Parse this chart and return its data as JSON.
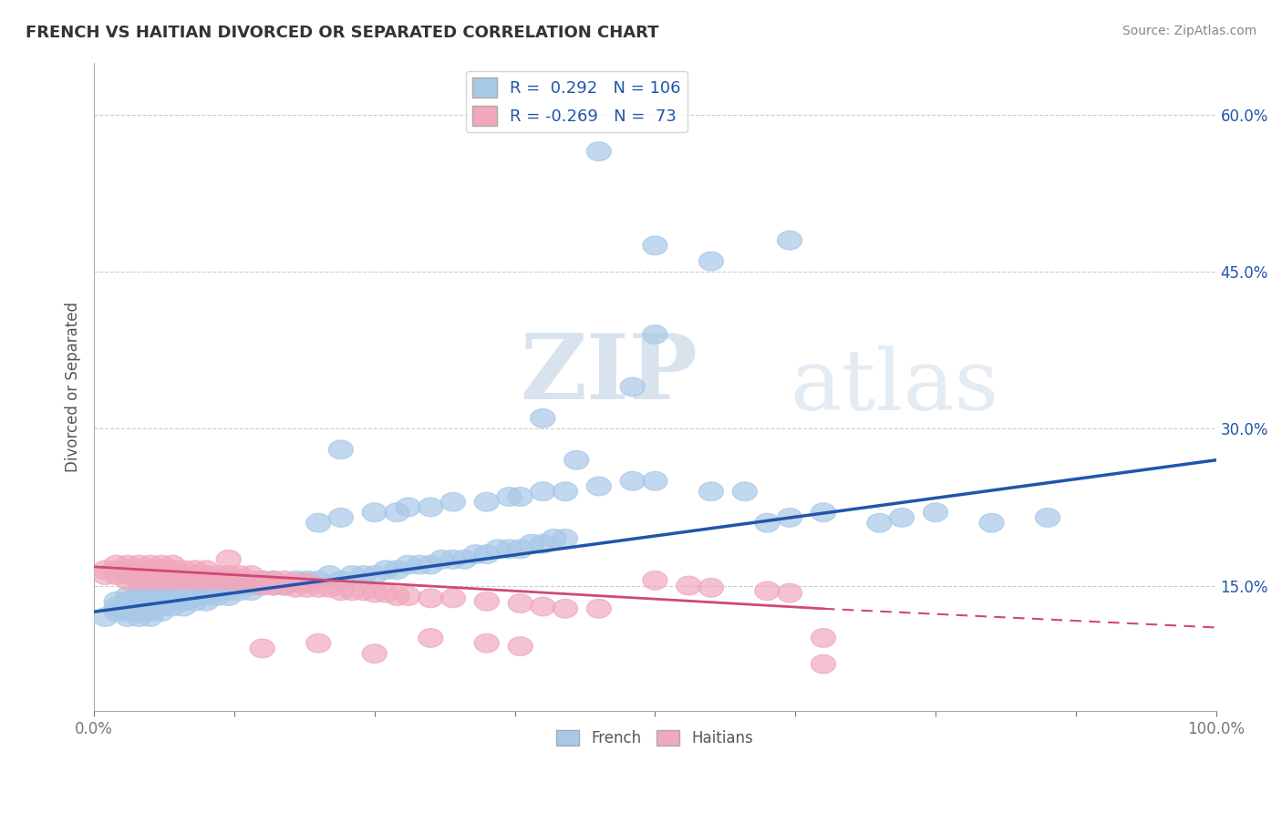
{
  "title": "FRENCH VS HAITIAN DIVORCED OR SEPARATED CORRELATION CHART",
  "source": "Source: ZipAtlas.com",
  "ylabel": "Divorced or Separated",
  "xlim": [
    0.0,
    1.0
  ],
  "ylim": [
    0.03,
    0.65
  ],
  "ytick_positions": [
    0.15,
    0.3,
    0.45,
    0.6
  ],
  "yticklabels": [
    "15.0%",
    "30.0%",
    "45.0%",
    "60.0%"
  ],
  "french_R": "0.292",
  "french_N": "106",
  "haitian_R": "-0.269",
  "haitian_N": "73",
  "french_color": "#a8c8e8",
  "haitian_color": "#f0a8bc",
  "french_line_color": "#2255aa",
  "haitian_line_color": "#d04878",
  "watermark_zip": "ZIP",
  "watermark_atlas": "atlas",
  "legend_french": "French",
  "legend_haitians": "Haitians",
  "french_scatter": [
    [
      0.01,
      0.12
    ],
    [
      0.02,
      0.125
    ],
    [
      0.02,
      0.13
    ],
    [
      0.02,
      0.135
    ],
    [
      0.03,
      0.12
    ],
    [
      0.03,
      0.125
    ],
    [
      0.03,
      0.13
    ],
    [
      0.03,
      0.135
    ],
    [
      0.03,
      0.14
    ],
    [
      0.04,
      0.12
    ],
    [
      0.04,
      0.125
    ],
    [
      0.04,
      0.13
    ],
    [
      0.04,
      0.135
    ],
    [
      0.04,
      0.14
    ],
    [
      0.04,
      0.145
    ],
    [
      0.05,
      0.12
    ],
    [
      0.05,
      0.125
    ],
    [
      0.05,
      0.13
    ],
    [
      0.05,
      0.135
    ],
    [
      0.05,
      0.14
    ],
    [
      0.05,
      0.145
    ],
    [
      0.06,
      0.125
    ],
    [
      0.06,
      0.13
    ],
    [
      0.06,
      0.135
    ],
    [
      0.06,
      0.14
    ],
    [
      0.06,
      0.145
    ],
    [
      0.07,
      0.13
    ],
    [
      0.07,
      0.135
    ],
    [
      0.07,
      0.14
    ],
    [
      0.07,
      0.145
    ],
    [
      0.08,
      0.13
    ],
    [
      0.08,
      0.135
    ],
    [
      0.08,
      0.14
    ],
    [
      0.08,
      0.145
    ],
    [
      0.08,
      0.15
    ],
    [
      0.09,
      0.135
    ],
    [
      0.09,
      0.14
    ],
    [
      0.09,
      0.145
    ],
    [
      0.09,
      0.15
    ],
    [
      0.1,
      0.135
    ],
    [
      0.1,
      0.14
    ],
    [
      0.1,
      0.145
    ],
    [
      0.1,
      0.15
    ],
    [
      0.11,
      0.14
    ],
    [
      0.11,
      0.145
    ],
    [
      0.11,
      0.15
    ],
    [
      0.11,
      0.155
    ],
    [
      0.12,
      0.14
    ],
    [
      0.12,
      0.145
    ],
    [
      0.12,
      0.15
    ],
    [
      0.12,
      0.155
    ],
    [
      0.13,
      0.145
    ],
    [
      0.13,
      0.15
    ],
    [
      0.14,
      0.145
    ],
    [
      0.14,
      0.15
    ],
    [
      0.15,
      0.15
    ],
    [
      0.15,
      0.155
    ],
    [
      0.16,
      0.15
    ],
    [
      0.16,
      0.155
    ],
    [
      0.17,
      0.15
    ],
    [
      0.18,
      0.155
    ],
    [
      0.19,
      0.155
    ],
    [
      0.2,
      0.155
    ],
    [
      0.21,
      0.16
    ],
    [
      0.22,
      0.155
    ],
    [
      0.23,
      0.16
    ],
    [
      0.24,
      0.16
    ],
    [
      0.25,
      0.16
    ],
    [
      0.26,
      0.165
    ],
    [
      0.27,
      0.165
    ],
    [
      0.28,
      0.17
    ],
    [
      0.29,
      0.17
    ],
    [
      0.3,
      0.17
    ],
    [
      0.31,
      0.175
    ],
    [
      0.32,
      0.175
    ],
    [
      0.33,
      0.175
    ],
    [
      0.34,
      0.18
    ],
    [
      0.35,
      0.18
    ],
    [
      0.36,
      0.185
    ],
    [
      0.37,
      0.185
    ],
    [
      0.38,
      0.185
    ],
    [
      0.39,
      0.19
    ],
    [
      0.4,
      0.19
    ],
    [
      0.41,
      0.195
    ],
    [
      0.42,
      0.195
    ],
    [
      0.2,
      0.21
    ],
    [
      0.22,
      0.215
    ],
    [
      0.25,
      0.22
    ],
    [
      0.27,
      0.22
    ],
    [
      0.28,
      0.225
    ],
    [
      0.3,
      0.225
    ],
    [
      0.32,
      0.23
    ],
    [
      0.35,
      0.23
    ],
    [
      0.37,
      0.235
    ],
    [
      0.38,
      0.235
    ],
    [
      0.4,
      0.24
    ],
    [
      0.42,
      0.24
    ],
    [
      0.45,
      0.245
    ],
    [
      0.48,
      0.25
    ],
    [
      0.5,
      0.25
    ],
    [
      0.22,
      0.28
    ],
    [
      0.43,
      0.27
    ],
    [
      0.48,
      0.34
    ],
    [
      0.5,
      0.39
    ],
    [
      0.4,
      0.31
    ],
    [
      0.55,
      0.24
    ],
    [
      0.58,
      0.24
    ],
    [
      0.6,
      0.21
    ],
    [
      0.62,
      0.215
    ],
    [
      0.65,
      0.22
    ],
    [
      0.7,
      0.21
    ],
    [
      0.72,
      0.215
    ],
    [
      0.75,
      0.22
    ],
    [
      0.8,
      0.21
    ],
    [
      0.85,
      0.215
    ],
    [
      0.45,
      0.565
    ],
    [
      0.5,
      0.475
    ],
    [
      0.55,
      0.46
    ],
    [
      0.62,
      0.48
    ]
  ],
  "haitian_scatter": [
    [
      0.01,
      0.16
    ],
    [
      0.01,
      0.165
    ],
    [
      0.02,
      0.16
    ],
    [
      0.02,
      0.165
    ],
    [
      0.02,
      0.17
    ],
    [
      0.03,
      0.155
    ],
    [
      0.03,
      0.16
    ],
    [
      0.03,
      0.165
    ],
    [
      0.03,
      0.17
    ],
    [
      0.04,
      0.155
    ],
    [
      0.04,
      0.16
    ],
    [
      0.04,
      0.165
    ],
    [
      0.04,
      0.17
    ],
    [
      0.05,
      0.155
    ],
    [
      0.05,
      0.16
    ],
    [
      0.05,
      0.165
    ],
    [
      0.05,
      0.17
    ],
    [
      0.06,
      0.155
    ],
    [
      0.06,
      0.16
    ],
    [
      0.06,
      0.165
    ],
    [
      0.06,
      0.17
    ],
    [
      0.07,
      0.155
    ],
    [
      0.07,
      0.16
    ],
    [
      0.07,
      0.165
    ],
    [
      0.07,
      0.17
    ],
    [
      0.08,
      0.155
    ],
    [
      0.08,
      0.16
    ],
    [
      0.08,
      0.165
    ],
    [
      0.09,
      0.155
    ],
    [
      0.09,
      0.16
    ],
    [
      0.09,
      0.165
    ],
    [
      0.1,
      0.155
    ],
    [
      0.1,
      0.16
    ],
    [
      0.1,
      0.165
    ],
    [
      0.11,
      0.155
    ],
    [
      0.11,
      0.16
    ],
    [
      0.12,
      0.155
    ],
    [
      0.12,
      0.16
    ],
    [
      0.12,
      0.175
    ],
    [
      0.13,
      0.155
    ],
    [
      0.13,
      0.16
    ],
    [
      0.14,
      0.155
    ],
    [
      0.14,
      0.16
    ],
    [
      0.15,
      0.15
    ],
    [
      0.15,
      0.155
    ],
    [
      0.16,
      0.15
    ],
    [
      0.16,
      0.155
    ],
    [
      0.17,
      0.15
    ],
    [
      0.17,
      0.155
    ],
    [
      0.18,
      0.148
    ],
    [
      0.18,
      0.153
    ],
    [
      0.19,
      0.148
    ],
    [
      0.19,
      0.153
    ],
    [
      0.2,
      0.148
    ],
    [
      0.21,
      0.148
    ],
    [
      0.22,
      0.145
    ],
    [
      0.23,
      0.145
    ],
    [
      0.24,
      0.145
    ],
    [
      0.25,
      0.143
    ],
    [
      0.26,
      0.143
    ],
    [
      0.27,
      0.14
    ],
    [
      0.28,
      0.14
    ],
    [
      0.3,
      0.138
    ],
    [
      0.32,
      0.138
    ],
    [
      0.35,
      0.135
    ],
    [
      0.38,
      0.133
    ],
    [
      0.4,
      0.13
    ],
    [
      0.42,
      0.128
    ],
    [
      0.45,
      0.128
    ],
    [
      0.15,
      0.09
    ],
    [
      0.2,
      0.095
    ],
    [
      0.25,
      0.085
    ],
    [
      0.3,
      0.1
    ],
    [
      0.35,
      0.095
    ],
    [
      0.38,
      0.092
    ],
    [
      0.5,
      0.155
    ],
    [
      0.53,
      0.15
    ],
    [
      0.55,
      0.148
    ],
    [
      0.6,
      0.145
    ],
    [
      0.62,
      0.143
    ],
    [
      0.65,
      0.1
    ],
    [
      0.65,
      0.075
    ]
  ],
  "background_color": "#ffffff",
  "grid_color": "#cccccc",
  "title_color": "#333333",
  "axis_color": "#aaaaaa"
}
